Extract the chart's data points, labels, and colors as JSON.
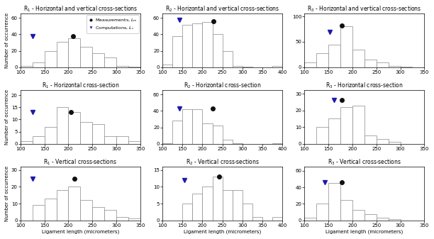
{
  "subplots": [
    {
      "row": 0,
      "col": 0,
      "title": "R$_1$ - Horizontal and vertical cross-sections",
      "bins": [
        100,
        125,
        150,
        175,
        200,
        225,
        250,
        275,
        300,
        325,
        350
      ],
      "counts": [
        2,
        6,
        20,
        31,
        35,
        25,
        17,
        12,
        2,
        1
      ],
      "xlim": [
        100,
        350
      ],
      "ylim": [
        0,
        65
      ],
      "yticks": [
        0,
        20,
        40,
        60
      ],
      "xticks": [
        100,
        150,
        200,
        250,
        300,
        350
      ],
      "meas_x": 210,
      "meas_y": 38,
      "comp_x": 125,
      "comp_y": 38,
      "show_legend": true
    },
    {
      "row": 0,
      "col": 1,
      "title": "R$_2$ - Horizontal and vertical cross-sections",
      "bins": [
        100,
        125,
        150,
        175,
        200,
        225,
        250,
        275,
        300,
        325,
        350,
        375,
        400
      ],
      "counts": [
        3,
        38,
        52,
        53,
        55,
        40,
        20,
        2,
        1,
        0,
        0,
        2
      ],
      "xlim": [
        100,
        400
      ],
      "ylim": [
        0,
        65
      ],
      "yticks": [
        0,
        20,
        40,
        60
      ],
      "xticks": [
        100,
        150,
        200,
        250,
        300,
        350,
        400
      ],
      "meas_x": 228,
      "meas_y": 56,
      "comp_x": 143,
      "comp_y": 58,
      "show_legend": false
    },
    {
      "row": 0,
      "col": 2,
      "title": "R$_3$ - Horizontal and vertical cross-sections",
      "bins": [
        100,
        125,
        150,
        175,
        200,
        225,
        250,
        275,
        300,
        325,
        350
      ],
      "counts": [
        10,
        28,
        45,
        80,
        35,
        15,
        10,
        3,
        1,
        0
      ],
      "xlim": [
        100,
        350
      ],
      "ylim": [
        0,
        105
      ],
      "yticks": [
        0,
        50,
        100
      ],
      "xticks": [
        100,
        150,
        200,
        250,
        300,
        350
      ],
      "meas_x": 178,
      "meas_y": 82,
      "comp_x": 152,
      "comp_y": 70,
      "show_legend": false
    },
    {
      "row": 1,
      "col": 0,
      "title": "R$_1$ - Horizontal cross-section",
      "bins": [
        100,
        125,
        150,
        175,
        200,
        225,
        250,
        275,
        300,
        325,
        350
      ],
      "counts": [
        1,
        3,
        7,
        15,
        13,
        9,
        8,
        3,
        3,
        1
      ],
      "xlim": [
        100,
        350
      ],
      "ylim": [
        0,
        22
      ],
      "yticks": [
        0,
        5,
        10,
        15,
        20
      ],
      "xticks": [
        100,
        150,
        200,
        250,
        300,
        350
      ],
      "meas_x": 205,
      "meas_y": 13,
      "comp_x": 125,
      "comp_y": 13,
      "show_legend": false
    },
    {
      "row": 1,
      "col": 1,
      "title": "R$_2$ - Horizontal cross-section",
      "bins": [
        100,
        125,
        150,
        175,
        200,
        225,
        250,
        275,
        300,
        325,
        350,
        375,
        400
      ],
      "counts": [
        1,
        28,
        42,
        42,
        25,
        22,
        5,
        1,
        0,
        0,
        0,
        1
      ],
      "xlim": [
        100,
        400
      ],
      "ylim": [
        0,
        65
      ],
      "yticks": [
        0,
        20,
        40,
        60
      ],
      "xticks": [
        100,
        150,
        200,
        250,
        300,
        350,
        400
      ],
      "meas_x": 225,
      "meas_y": 43,
      "comp_x": 143,
      "comp_y": 43,
      "show_legend": false
    },
    {
      "row": 1,
      "col": 2,
      "title": "R$_3$ - Horizontal cross-section",
      "bins": [
        100,
        125,
        150,
        175,
        200,
        225,
        250,
        275,
        300,
        325,
        350
      ],
      "counts": [
        0,
        10,
        15,
        22,
        23,
        5,
        3,
        1,
        0,
        0
      ],
      "xlim": [
        100,
        350
      ],
      "ylim": [
        0,
        32
      ],
      "yticks": [
        0,
        10,
        20,
        30
      ],
      "xticks": [
        100,
        150,
        200,
        250,
        300,
        350
      ],
      "meas_x": 178,
      "meas_y": 26,
      "comp_x": 162,
      "comp_y": 26,
      "show_legend": false
    },
    {
      "row": 2,
      "col": 0,
      "title": "R$_1$ - Vertical cross-sections",
      "bins": [
        100,
        125,
        150,
        175,
        200,
        225,
        250,
        275,
        300,
        325,
        350
      ],
      "counts": [
        0,
        9,
        13,
        18,
        20,
        12,
        8,
        6,
        2,
        1
      ],
      "xlim": [
        100,
        350
      ],
      "ylim": [
        0,
        32
      ],
      "yticks": [
        0,
        10,
        20,
        30
      ],
      "xticks": [
        100,
        150,
        200,
        250,
        300,
        350
      ],
      "meas_x": 213,
      "meas_y": 25,
      "comp_x": 125,
      "comp_y": 25,
      "show_legend": false
    },
    {
      "row": 2,
      "col": 1,
      "title": "R$_2$ - Vertical cross-sections",
      "bins": [
        100,
        125,
        150,
        175,
        200,
        225,
        250,
        275,
        300,
        325,
        350,
        375,
        400
      ],
      "counts": [
        0,
        0,
        5,
        8,
        10,
        13,
        9,
        9,
        5,
        1,
        0,
        1
      ],
      "xlim": [
        100,
        400
      ],
      "ylim": [
        0,
        16
      ],
      "yticks": [
        0,
        5,
        10,
        15
      ],
      "xticks": [
        100,
        150,
        200,
        250,
        300,
        350,
        400
      ],
      "meas_x": 242,
      "meas_y": 13,
      "comp_x": 155,
      "comp_y": 12,
      "show_legend": false
    },
    {
      "row": 2,
      "col": 2,
      "title": "R$_3$ - Vertical cross-sections",
      "bins": [
        100,
        125,
        150,
        175,
        200,
        225,
        250,
        275,
        300,
        325,
        350
      ],
      "counts": [
        3,
        20,
        45,
        25,
        13,
        7,
        3,
        1,
        0,
        0
      ],
      "xlim": [
        100,
        350
      ],
      "ylim": [
        0,
        65
      ],
      "yticks": [
        0,
        20,
        40,
        60
      ],
      "xticks": [
        100,
        150,
        200,
        250,
        300,
        350
      ],
      "meas_x": 178,
      "meas_y": 46,
      "comp_x": 143,
      "comp_y": 46,
      "show_legend": false
    }
  ],
  "xlabel": "Ligament length (micrometers)",
  "ylabel": "Number of occurrence",
  "bar_color": "white",
  "bar_edge_color": "#888888",
  "meas_color": "#111111",
  "comp_color": "#1a1aaa",
  "legend_meas": "Measurements, $L_m$",
  "legend_comp": "Computations, $L_c$",
  "title_fontsize": 5.5,
  "label_fontsize": 5.0,
  "tick_fontsize": 5.0,
  "legend_fontsize": 4.5,
  "marker_size": 4.0
}
